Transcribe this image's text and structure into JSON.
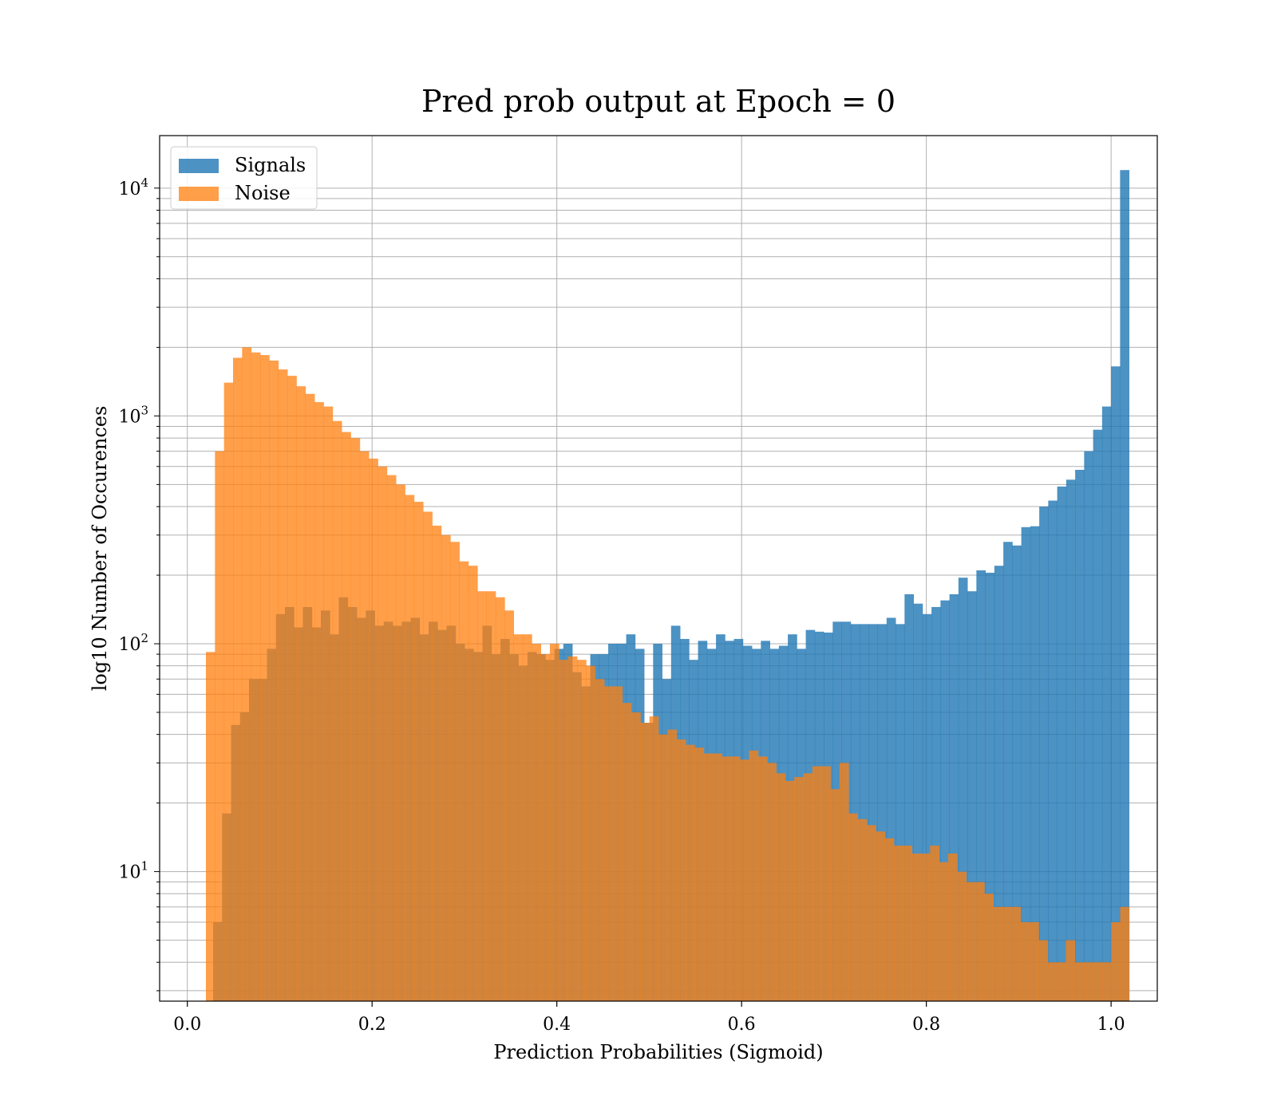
{
  "chart_data": {
    "type": "bar",
    "title": "Pred prob output at Epoch = 0",
    "xlabel": "Prediction Probabilities (Sigmoid)",
    "ylabel": "log10 Number of Occurences",
    "x_scale": "linear",
    "y_scale": "log",
    "xlim": [
      -0.03,
      1.05
    ],
    "ylim": [
      2.7,
      17000
    ],
    "grid": true,
    "legend_placement": "top-left",
    "x_ticks": [
      0.0,
      0.2,
      0.4,
      0.6,
      0.8,
      1.0
    ],
    "x_tick_labels": [
      "0.0",
      "0.2",
      "0.4",
      "0.6",
      "0.8",
      "1.0"
    ],
    "y_ticks": [
      10,
      100,
      1000,
      10000
    ],
    "y_tick_labels": [
      {
        "base": "10",
        "exp": "1"
      },
      {
        "base": "10",
        "exp": "2"
      },
      {
        "base": "10",
        "exp": "3"
      },
      {
        "base": "10",
        "exp": "4"
      }
    ],
    "series": [
      {
        "name": "Signals",
        "color": "#1f77b4",
        "opacity": 0.8,
        "bin_start": 0.0279,
        "bin_width": 0.009721,
        "values": [
          6,
          18,
          44,
          50,
          70,
          70,
          95,
          135,
          145,
          118,
          145,
          118,
          140,
          110,
          160,
          145,
          130,
          140,
          120,
          125,
          120,
          125,
          130,
          110,
          125,
          115,
          120,
          100,
          95,
          92,
          120,
          90,
          105,
          90,
          80,
          92,
          90,
          85,
          95,
          100,
          75,
          65,
          90,
          90,
          100,
          100,
          110,
          95,
          45,
          100,
          70,
          120,
          105,
          85,
          103,
          95,
          110,
          103,
          105,
          98,
          95,
          103,
          95,
          98,
          110,
          95,
          115,
          113,
          112,
          125,
          125,
          122,
          122,
          122,
          122,
          130,
          122,
          165,
          150,
          135,
          145,
          155,
          165,
          195,
          170,
          210,
          205,
          220,
          280,
          270,
          325,
          328,
          400,
          425,
          490,
          525,
          580,
          700,
          870,
          1100,
          1650,
          12000
        ]
      },
      {
        "name": "Noise",
        "color": "#ff7f0e",
        "opacity": 0.75,
        "bin_start": 0.0201,
        "bin_width": 0.009799,
        "values": [
          92,
          700,
          1400,
          1800,
          2000,
          1900,
          1850,
          1750,
          1600,
          1500,
          1350,
          1250,
          1150,
          1100,
          950,
          850,
          800,
          700,
          650,
          600,
          550,
          500,
          450,
          420,
          380,
          330,
          300,
          280,
          230,
          220,
          170,
          170,
          160,
          140,
          110,
          110,
          100,
          90,
          100,
          85,
          88,
          85,
          80,
          70,
          65,
          65,
          55,
          50,
          45,
          48,
          40,
          42,
          38,
          36,
          35,
          33,
          33,
          32,
          32,
          31,
          34,
          32,
          30,
          27,
          25,
          26,
          27,
          29,
          29,
          23,
          30,
          18,
          17,
          16,
          15,
          14,
          13,
          13,
          12,
          12,
          13,
          11,
          12,
          10,
          9,
          9,
          8,
          7,
          7,
          7,
          6,
          6,
          5,
          4,
          4,
          5,
          4,
          4,
          4,
          4,
          6,
          7
        ]
      }
    ]
  }
}
